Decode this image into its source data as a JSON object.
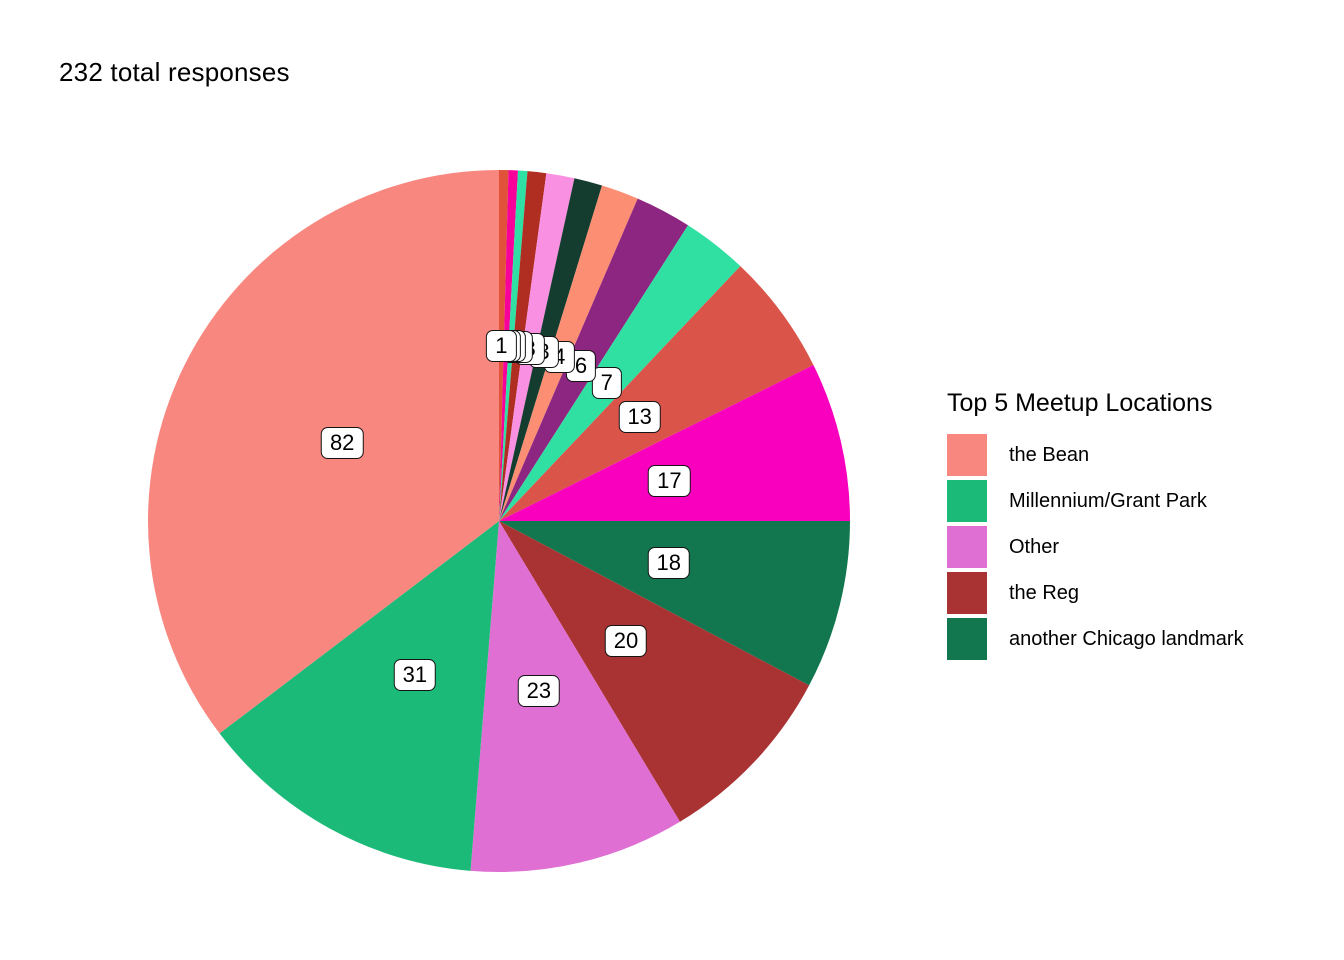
{
  "chart_data": {
    "type": "pie",
    "title": "232 total responses",
    "total": 232,
    "direction": "clockwise",
    "start_angle": "12-o-clock",
    "slices": [
      {
        "value": 1,
        "color": "#E0523A",
        "category": ""
      },
      {
        "value": 1,
        "color": "#F7019A",
        "category": ""
      },
      {
        "value": 1,
        "color": "#2FDFA3",
        "category": ""
      },
      {
        "value": 2,
        "color": "#B02D22",
        "category": ""
      },
      {
        "value": 3,
        "color": "#F990E1",
        "category": ""
      },
      {
        "value": 3,
        "color": "#143D2F",
        "category": ""
      },
      {
        "value": 4,
        "color": "#FC8E73",
        "category": ""
      },
      {
        "value": 6,
        "color": "#8C2680",
        "category": ""
      },
      {
        "value": 7,
        "color": "#2FE0A2",
        "category": ""
      },
      {
        "value": 13,
        "color": "#DA5449",
        "category": ""
      },
      {
        "value": 17,
        "color": "#F900BE",
        "category": ""
      },
      {
        "value": 18,
        "color": "#12774E",
        "category": "another Chicago landmark"
      },
      {
        "value": 20,
        "color": "#A93232",
        "category": "the Reg"
      },
      {
        "value": 23,
        "color": "#DF6FD3",
        "category": "Other"
      },
      {
        "value": 31,
        "color": "#1CBA78",
        "category": "Millennium/Grant Park"
      },
      {
        "value": 82,
        "color": "#F8877F",
        "category": "the Bean"
      }
    ],
    "legend": {
      "title": "Top 5 Meetup Locations",
      "position": "right",
      "items": [
        {
          "label": "the Bean",
          "color": "#F8877F"
        },
        {
          "label": "Millennium/Grant Park",
          "color": "#1CBA78"
        },
        {
          "label": "Other",
          "color": "#DF6FD3"
        },
        {
          "label": "the Reg",
          "color": "#A93232"
        },
        {
          "label": "another Chicago landmark",
          "color": "#12774E"
        }
      ]
    }
  }
}
